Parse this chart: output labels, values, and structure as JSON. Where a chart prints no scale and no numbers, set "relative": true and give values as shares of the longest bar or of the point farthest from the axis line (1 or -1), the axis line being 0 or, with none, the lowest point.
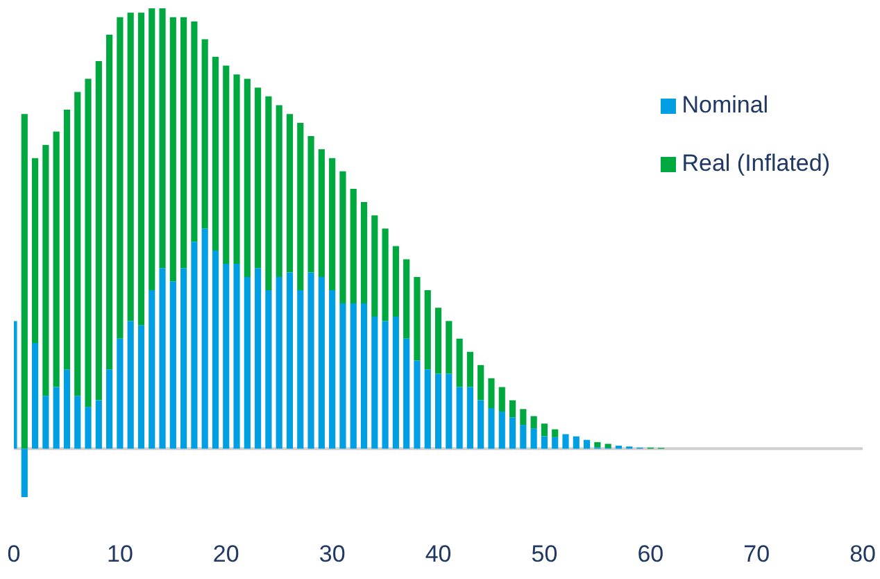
{
  "chart_data": {
    "type": "bar",
    "relative": true,
    "stacked": true,
    "legend": "top right",
    "tick_labels": "x",
    "x": [
      0,
      1,
      2,
      3,
      4,
      5,
      6,
      7,
      8,
      9,
      10,
      11,
      12,
      13,
      14,
      15,
      16,
      17,
      18,
      19,
      20,
      21,
      22,
      23,
      24,
      25,
      26,
      27,
      28,
      29,
      30,
      31,
      32,
      33,
      34,
      35,
      36,
      37,
      38,
      39,
      40,
      41,
      42,
      43,
      44,
      45,
      46,
      47,
      48,
      49,
      50,
      51,
      52,
      53,
      54,
      55,
      56,
      57,
      58,
      59,
      60,
      61
    ],
    "xlim": [
      0,
      80
    ],
    "xticks": [
      0,
      10,
      20,
      30,
      40,
      50,
      60,
      70,
      80
    ],
    "series": [
      {
        "name": "Nominal",
        "color": "#009fe3",
        "values": [
          0.29,
          -0.11,
          0.24,
          0.12,
          0.14,
          0.18,
          0.12,
          0.095,
          0.11,
          0.18,
          0.25,
          0.29,
          0.28,
          0.36,
          0.41,
          0.38,
          0.41,
          0.47,
          0.5,
          0.45,
          0.42,
          0.42,
          0.39,
          0.41,
          0.36,
          0.39,
          0.4,
          0.36,
          0.4,
          0.39,
          0.36,
          0.33,
          0.33,
          0.33,
          0.3,
          0.29,
          0.3,
          0.25,
          0.2,
          0.18,
          0.17,
          0.17,
          0.14,
          0.14,
          0.11,
          0.092,
          0.084,
          0.071,
          0.054,
          0.046,
          0.028,
          0.026,
          0.033,
          0.028,
          0.02,
          0.003,
          0.002,
          0.007,
          0.005,
          0.0025,
          null,
          null
        ]
      },
      {
        "name": "Real (Inflated)",
        "color": "#00a940",
        "values": [
          null,
          0.76,
          0.42,
          0.57,
          0.58,
          0.59,
          0.69,
          0.745,
          0.77,
          0.76,
          0.73,
          0.7,
          0.71,
          0.64,
          0.59,
          0.6,
          0.57,
          0.5,
          0.43,
          0.44,
          0.45,
          0.43,
          0.45,
          0.41,
          0.44,
          0.39,
          0.36,
          0.38,
          0.31,
          0.29,
          0.3,
          0.3,
          0.26,
          0.23,
          0.23,
          0.21,
          0.16,
          0.18,
          0.19,
          0.18,
          0.15,
          0.12,
          0.11,
          0.08,
          0.08,
          0.068,
          0.056,
          0.039,
          0.036,
          0.028,
          0.029,
          0.018,
          null,
          null,
          null,
          0.012,
          0.009,
          null,
          null,
          null,
          0.0025,
          0.002
        ]
      }
    ]
  }
}
